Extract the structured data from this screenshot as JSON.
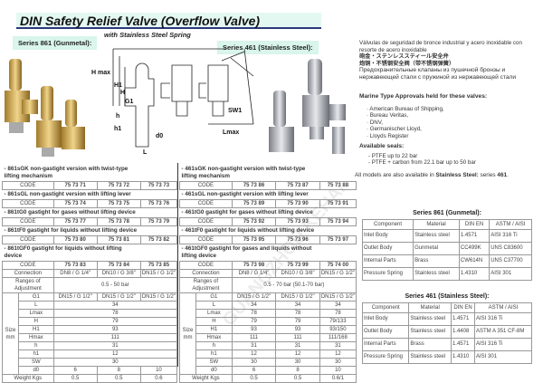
{
  "title": "DIN  Safety Relief Valve  (Overflow Valve)",
  "subtitle": "with Stainless Steel Spring",
  "series861_label": "Series 861 (Gunmetal):",
  "series461_label": "Series 461 (Stainless Steel):",
  "watermark": "GUANGZHOU KEHAI",
  "tables": {
    "s861": {
      "variants": [
        {
          "title": "- 861sGK  non-gastight version with twist-type lifting mechanism",
          "codes": [
            "75 73 71",
            "75 73 72",
            "75 73 73"
          ]
        },
        {
          "title": "- 861sGL  non-gastight version with lifting lever",
          "codes": [
            "75 73 74",
            "75 73 75",
            "75 73 76"
          ]
        },
        {
          "title": "- 861tG0  gastight for gases without lifting device",
          "codes": [
            "75 73 77",
            "75 73 78",
            "75 73 79"
          ]
        },
        {
          "title": "- 861tF0  gastight for liquids without lifting device",
          "codes": [
            "75 73 80",
            "75 73 81",
            "75 73 82"
          ]
        },
        {
          "title": "- 861tGF0  gastight for liquids without lifting device",
          "codes": [
            "75 73 83",
            "75 73 84",
            "75 73 85"
          ]
        }
      ],
      "code_label": "CODE",
      "connection_label": "Connection",
      "connection": [
        "DN8 / G 1/4\"",
        "DN10 / G 3/8\"",
        "DN15 / G 1/2\""
      ],
      "ranges_label": "Ranges of Adjustment",
      "ranges": "0.5 - 50 bar",
      "size_label": "Size mm",
      "size": [
        {
          "k": "G1",
          "v": [
            "DN15 / G 1/2\"",
            "DN15 / G 1/2\"",
            "DN15 / G 1/2\""
          ]
        },
        {
          "k": "L",
          "v": [
            "34"
          ]
        },
        {
          "k": "Lmax",
          "v": [
            "78"
          ]
        },
        {
          "k": "H",
          "v": [
            "79"
          ]
        },
        {
          "k": "H1",
          "v": [
            "93"
          ]
        },
        {
          "k": "Hmax",
          "v": [
            "111"
          ]
        },
        {
          "k": "h",
          "v": [
            "31"
          ]
        },
        {
          "k": "h1",
          "v": [
            "12"
          ]
        },
        {
          "k": "SW",
          "v": [
            "30"
          ]
        },
        {
          "k": "d0",
          "v": [
            "6",
            "8",
            "10"
          ]
        }
      ],
      "weight_label": "Weight Kgs",
      "weight": [
        "0.5",
        "0.5",
        "0.6"
      ]
    },
    "s461": {
      "variants": [
        {
          "title": "- 461sGK  non-gastight version with twist-type lifting mechanism",
          "codes": [
            "75 73 86",
            "75 73 87",
            "75 73 88"
          ]
        },
        {
          "title": "- 461sGL  non-gastight version with lifting lever",
          "codes": [
            "75 73 89",
            "75 73 90",
            "75 73 91"
          ]
        },
        {
          "title": "- 461tG0  gastight for gases without lifting device",
          "codes": [
            "75 73 92",
            "75 73 93",
            "75 73 94"
          ]
        },
        {
          "title": "- 461tF0  gastight for liquids without lifting device",
          "codes": [
            "75 73 95",
            "75 73 96",
            "75 73 97"
          ]
        },
        {
          "title": "- 461tGF0  gastight for gases and liquids without lifting device",
          "codes": [
            "75 73 98",
            "75 73 99",
            "75 74 00"
          ]
        }
      ],
      "code_label": "CODE",
      "connection_label": "Connection",
      "connection": [
        "DN8 / G 1/4\"",
        "DN10 / G 3/8\"",
        "DN15 / G 1/2\""
      ],
      "ranges_label": "Ranges of Adjustment",
      "ranges": "0.5 - 70 bar (50.1-70 bar)",
      "size_label": "Size mm",
      "size": [
        {
          "k": "G1",
          "v": [
            "DN15 / G 1/2\"",
            "DN15 / G 1/2\"",
            "DN15 / G 1/2\""
          ]
        },
        {
          "k": "L",
          "v": [
            "34",
            "34",
            "34"
          ]
        },
        {
          "k": "Lmax",
          "v": [
            "78",
            "78",
            "78"
          ]
        },
        {
          "k": "H",
          "v": [
            "79",
            "79",
            "79/133"
          ]
        },
        {
          "k": "H1",
          "v": [
            "93",
            "93",
            "93/150"
          ]
        },
        {
          "k": "Hmax",
          "v": [
            "111",
            "111",
            "111/168"
          ]
        },
        {
          "k": "h",
          "v": [
            "31",
            "31",
            "31"
          ]
        },
        {
          "k": "h1",
          "v": [
            "12",
            "12",
            "12"
          ]
        },
        {
          "k": "SW",
          "v": [
            "30",
            "30",
            "30"
          ]
        },
        {
          "k": "d0",
          "v": [
            "6",
            "8",
            "10"
          ]
        }
      ],
      "weight_label": "Weight Kgs",
      "weight": [
        "0.5",
        "0.5",
        "0.6/1"
      ]
    }
  },
  "drawing_labels": [
    "H max",
    "H1",
    "H",
    "G1",
    "h",
    "h1",
    "d0",
    "L",
    "SW1",
    "Lmax"
  ],
  "right": {
    "multilang": [
      "Válvulas de seguridad de bronce industrial y acero inoxidable con resorte de acero inoxidable",
      "砲金・ステンレススティール安全弁",
      "炮铜・不锈钢安全阀（带不锈钢弹簧）",
      "Предохранительные клапаны   из пушечной бронзы и нержавеющей стали  с пружиной из нержавеющей стали"
    ],
    "marine_title": "Marine Type Approvals held for these valves:",
    "marine": [
      "American Bureau of Shipping,",
      "Bureau Veritas,",
      "DNV,",
      "Germanischer Lloyd,",
      "Lloyds Register"
    ],
    "seals_title": "Available seals:",
    "seals": [
      "- PTFE up to 22 bar",
      "- PTFE + carbon from 22.1 bar up to 50 bar"
    ],
    "also_prefix": "All models are also available in ",
    "also_bold": "Stainless Steel:",
    "also_mid": " series ",
    "also_series": "461",
    "also_end": "."
  },
  "materials": [
    {
      "title": "Series 861 (Gunmetal):",
      "headers": [
        "Component",
        "Material",
        "DIN EN",
        "ASTM / AISI"
      ],
      "rows": [
        [
          "Inlet Body",
          "Stainless steel",
          "1.4571",
          "AISI 316 Ti"
        ],
        [
          "Outlet Body",
          "Gunmetal",
          "CC499K",
          "UNS C83600"
        ],
        [
          "Internal Parts",
          "Brass",
          "CW614N",
          "UNS C37700"
        ],
        [
          "Pressure Spring",
          "Stainless steel",
          "1.4310",
          "AISI 301"
        ]
      ]
    },
    {
      "title": "Series 461 (Stainless Steel):",
      "headers": [
        "Component",
        "Material",
        "DIN EN",
        "ASTM / AISI"
      ],
      "rows": [
        [
          "Inlet Body",
          "Stainless steel",
          "1.4571",
          "AISI 316 Ti"
        ],
        [
          "Outlet Body",
          "Stainless steel",
          "1.4408",
          "ASTM A 351 CF-8M"
        ],
        [
          "Internal Parts",
          "Brass",
          "1.4571",
          "AISI 316 Ti"
        ],
        [
          "Pressure Spring",
          "Stainless steel",
          "1.4310",
          "AISI 301"
        ]
      ]
    }
  ]
}
